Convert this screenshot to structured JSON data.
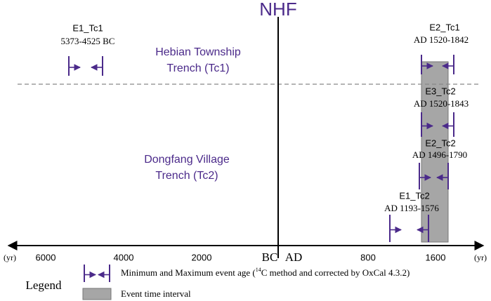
{
  "title": "NHF",
  "regions": [
    {
      "lines": [
        "Hebian Township",
        "Trench (Tc1)"
      ]
    },
    {
      "lines": [
        "Dongfang Village",
        "Trench (Tc2)"
      ]
    }
  ],
  "events": [
    {
      "name": "E1_Tc1",
      "range": "5373-4525 BC"
    },
    {
      "name": "E2_Tc1",
      "range": "AD 1520-1842"
    },
    {
      "name": "E3_Tc2",
      "range": "AD 1520-1843"
    },
    {
      "name": "E2_Tc2",
      "range": "AD 1496-1790"
    },
    {
      "name": "E1_Tc2",
      "range": "AD 1193-1576"
    }
  ],
  "axis": {
    "unit": "(yr)",
    "bc_label": "BC",
    "ad_label": "AD",
    "bc_ticks": [
      6000,
      4000,
      2000
    ],
    "ad_ticks": [
      800,
      1600
    ]
  },
  "legend": {
    "title": "Legend",
    "items": [
      {
        "parts": [
          "Minimum and Maximum event age (",
          "14",
          "C method and corrected by OxCal 4.3.2)"
        ]
      },
      {
        "parts": [
          "Event time interval"
        ]
      }
    ]
  }
}
